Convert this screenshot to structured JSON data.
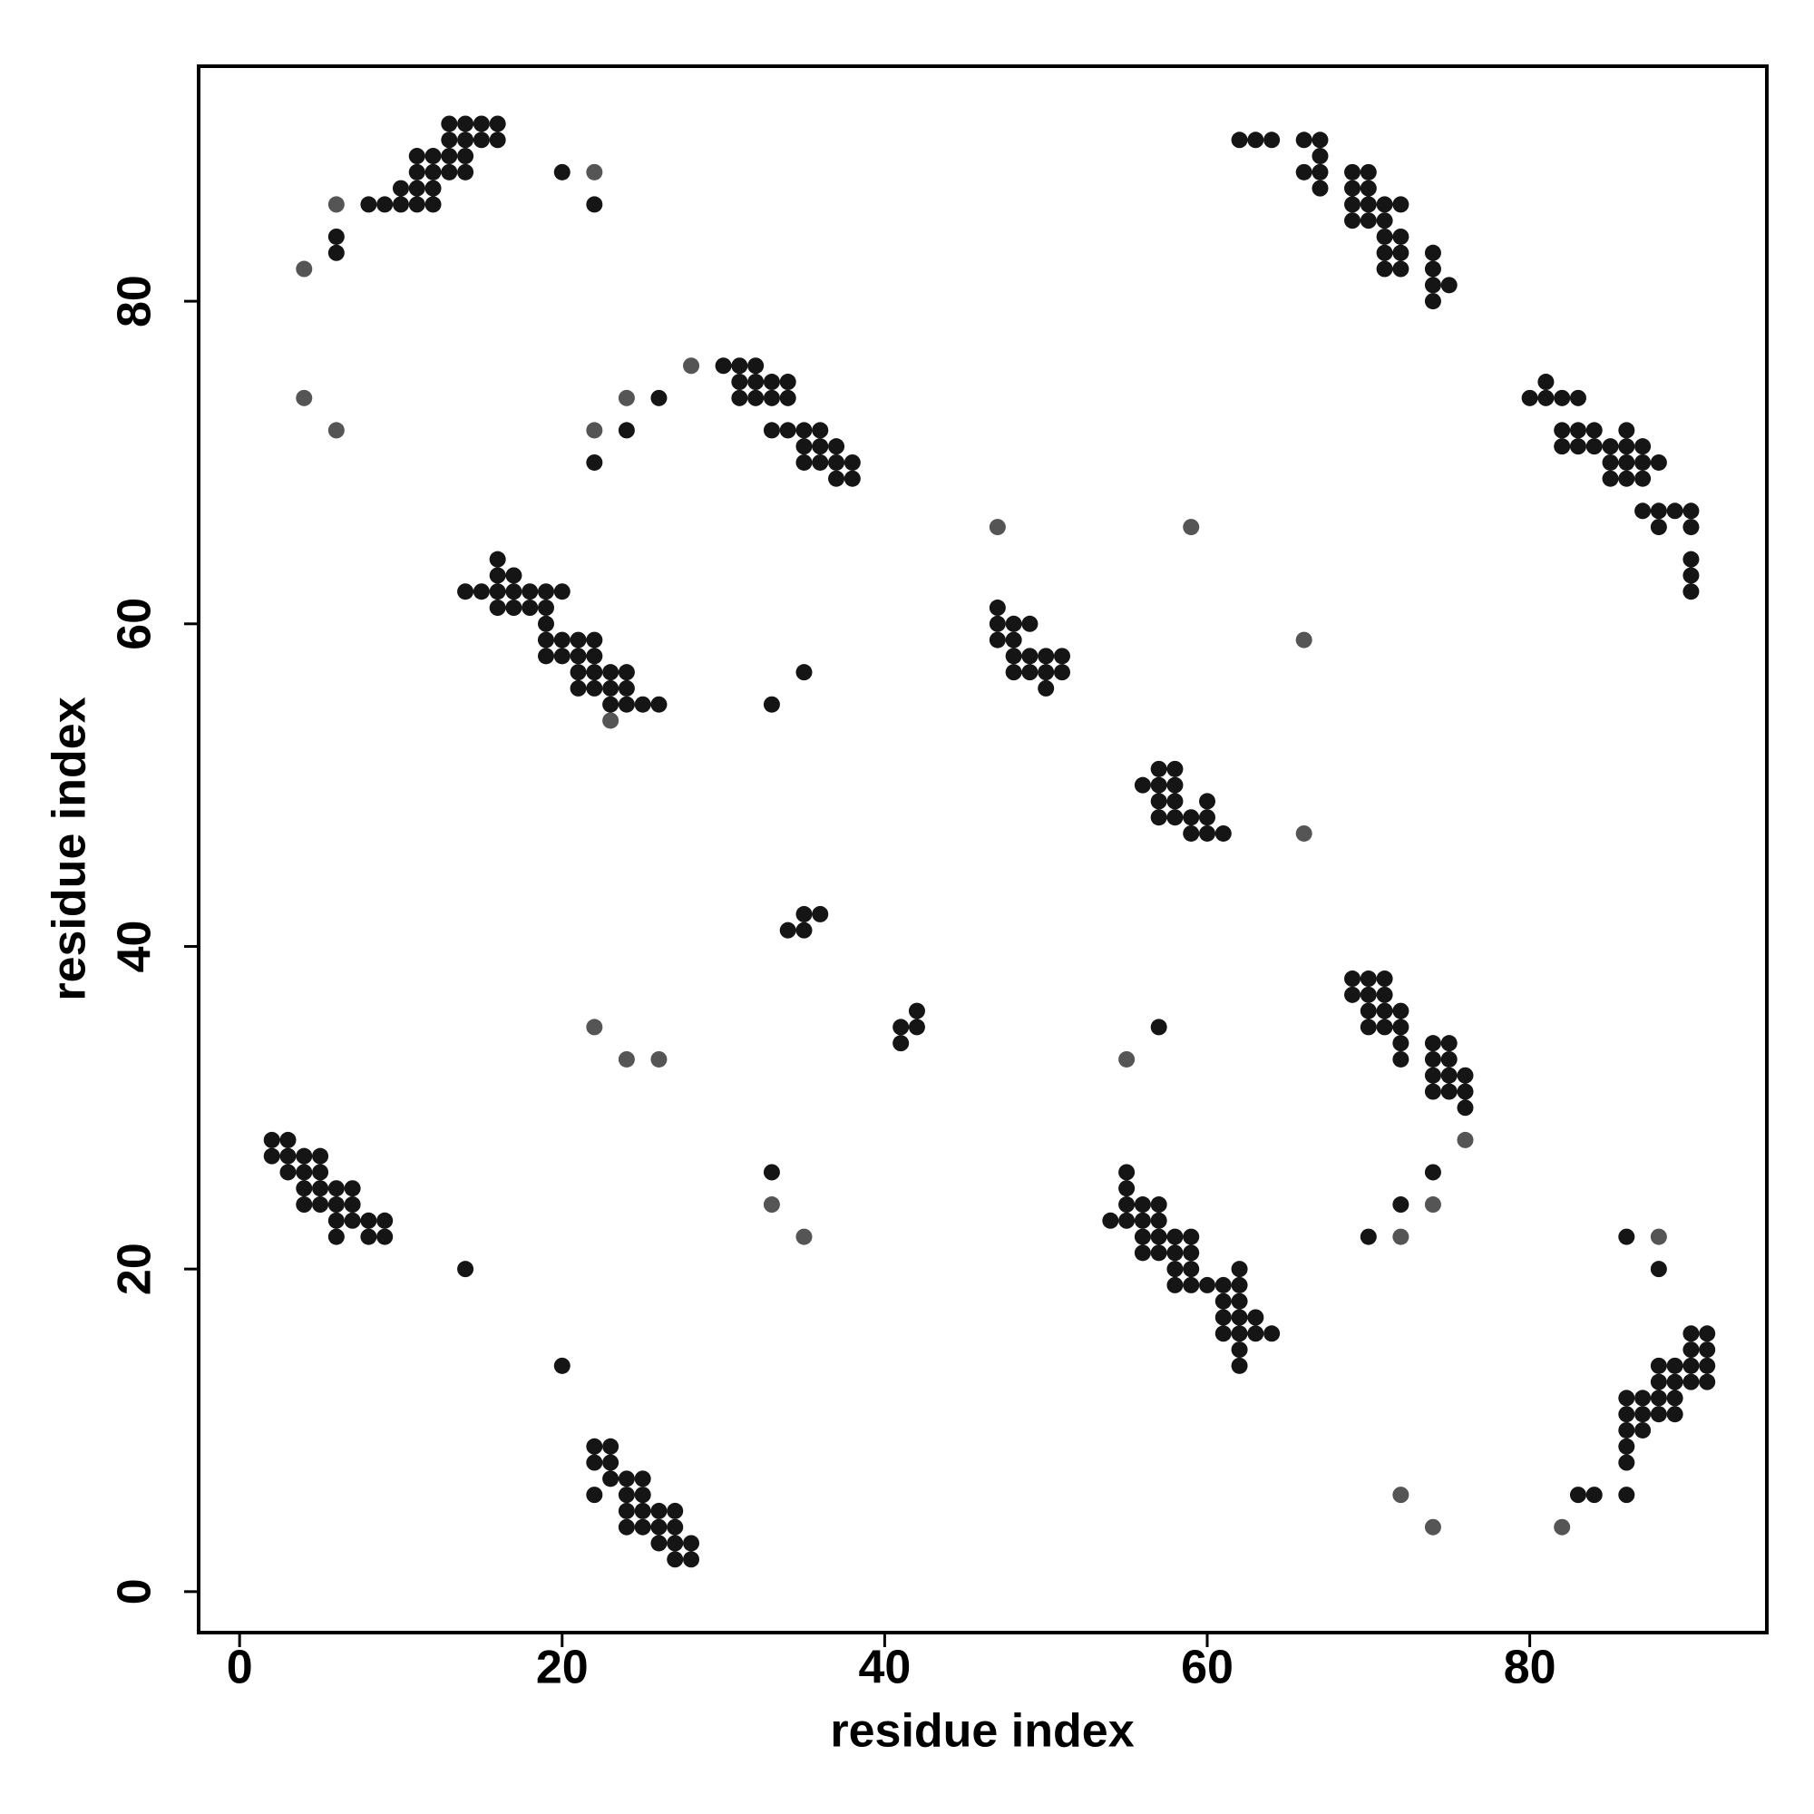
{
  "chart_data": {
    "type": "scatter",
    "xlabel": "residue index",
    "ylabel": "residue index",
    "xlim": [
      -2.54,
      94.7
    ],
    "ylim": [
      -2.54,
      94.57
    ],
    "xticks": [
      0,
      20,
      40,
      60,
      80
    ],
    "yticks": [
      0,
      20,
      40,
      60,
      80
    ],
    "series": [
      {
        "color": "#151515",
        "x": [
          13,
          14,
          15,
          16,
          13,
          14,
          15,
          16,
          62,
          63,
          64,
          66,
          67,
          11,
          12,
          13,
          14,
          67,
          11,
          12,
          13,
          14,
          20,
          66,
          67,
          69,
          70,
          10,
          11,
          12,
          67,
          69,
          70,
          8,
          9,
          10,
          11,
          12,
          22,
          69,
          70,
          71,
          72,
          69,
          70,
          71,
          6,
          71,
          72,
          6,
          71,
          72,
          74,
          71,
          72,
          74,
          74,
          75,
          74,
          30,
          31,
          32,
          31,
          32,
          33,
          34,
          81,
          26,
          31,
          32,
          33,
          34,
          80,
          81,
          82,
          83,
          24,
          33,
          34,
          35,
          36,
          82,
          83,
          84,
          86,
          35,
          36,
          37,
          82,
          83,
          84,
          85,
          86,
          87,
          22,
          35,
          36,
          37,
          38,
          85,
          86,
          87,
          88,
          37,
          38,
          85,
          86,
          87,
          87,
          88,
          89,
          90,
          88,
          90,
          16,
          90,
          16,
          17,
          90,
          14,
          15,
          16,
          17,
          18,
          19,
          20,
          90,
          16,
          17,
          18,
          19,
          47,
          19,
          47,
          48,
          49,
          19,
          20,
          21,
          22,
          47,
          48,
          19,
          20,
          21,
          22,
          48,
          49,
          50,
          51,
          21,
          22,
          23,
          24,
          35,
          48,
          49,
          50,
          51,
          21,
          22,
          23,
          24,
          50,
          23,
          24,
          25,
          26,
          33,
          57,
          58,
          56,
          57,
          58,
          57,
          58,
          60,
          57,
          58,
          59,
          60,
          59,
          60,
          61,
          35,
          36,
          34,
          35,
          69,
          70,
          71,
          69,
          70,
          71,
          42,
          70,
          71,
          72,
          41,
          42,
          57,
          70,
          71,
          72,
          41,
          72,
          74,
          75,
          72,
          74,
          75,
          74,
          75,
          76,
          74,
          75,
          76,
          76,
          2,
          3,
          2,
          3,
          4,
          5,
          3,
          4,
          5,
          33,
          55,
          74,
          4,
          5,
          6,
          7,
          55,
          4,
          5,
          6,
          7,
          55,
          56,
          57,
          72,
          6,
          7,
          8,
          9,
          54,
          55,
          56,
          57,
          6,
          8,
          9,
          56,
          57,
          58,
          59,
          70,
          86,
          56,
          57,
          58,
          59,
          14,
          58,
          59,
          62,
          88,
          58,
          59,
          60,
          61,
          62,
          61,
          62,
          61,
          62,
          63,
          61,
          62,
          63,
          64,
          90,
          91,
          62,
          90,
          91,
          20,
          62,
          88,
          89,
          90,
          91,
          88,
          89,
          90,
          91,
          86,
          87,
          88,
          89,
          86,
          87,
          88,
          89,
          86,
          87,
          22,
          23,
          86,
          22,
          23,
          86,
          23,
          24,
          25,
          22,
          24,
          25,
          83,
          84,
          86,
          24,
          25,
          26,
          27,
          24,
          25,
          26,
          27,
          26,
          27,
          28,
          27,
          28
        ],
        "y": [
          91,
          91,
          91,
          91,
          90,
          90,
          90,
          90,
          90,
          90,
          90,
          90,
          90,
          89,
          89,
          89,
          89,
          89,
          88,
          88,
          88,
          88,
          88,
          88,
          88,
          88,
          88,
          87,
          87,
          87,
          87,
          87,
          87,
          86,
          86,
          86,
          86,
          86,
          86,
          86,
          86,
          86,
          86,
          85,
          85,
          85,
          84,
          84,
          84,
          83,
          83,
          83,
          83,
          82,
          82,
          82,
          81,
          81,
          80,
          76,
          76,
          76,
          75,
          75,
          75,
          75,
          75,
          74,
          74,
          74,
          74,
          74,
          74,
          74,
          74,
          74,
          72,
          72,
          72,
          72,
          72,
          72,
          72,
          72,
          72,
          71,
          71,
          71,
          71,
          71,
          71,
          71,
          71,
          71,
          70,
          70,
          70,
          70,
          70,
          70,
          70,
          70,
          70,
          69,
          69,
          69,
          69,
          69,
          67,
          67,
          67,
          67,
          66,
          66,
          64,
          64,
          63,
          63,
          63,
          62,
          62,
          62,
          62,
          62,
          62,
          62,
          62,
          61,
          61,
          61,
          61,
          61,
          60,
          60,
          60,
          60,
          59,
          59,
          59,
          59,
          59,
          59,
          58,
          58,
          58,
          58,
          58,
          58,
          58,
          58,
          57,
          57,
          57,
          57,
          57,
          57,
          57,
          57,
          57,
          56,
          56,
          56,
          56,
          56,
          55,
          55,
          55,
          55,
          55,
          51,
          51,
          50,
          50,
          50,
          49,
          49,
          49,
          48,
          48,
          48,
          48,
          47,
          47,
          47,
          42,
          42,
          41,
          41,
          38,
          38,
          38,
          37,
          37,
          37,
          36,
          36,
          36,
          36,
          35,
          35,
          35,
          35,
          35,
          35,
          34,
          34,
          34,
          34,
          33,
          33,
          33,
          32,
          32,
          32,
          31,
          31,
          31,
          30,
          28,
          28,
          27,
          27,
          27,
          27,
          26,
          26,
          26,
          26,
          26,
          26,
          25,
          25,
          25,
          25,
          25,
          24,
          24,
          24,
          24,
          24,
          24,
          24,
          24,
          23,
          23,
          23,
          23,
          23,
          23,
          23,
          23,
          22,
          22,
          22,
          22,
          22,
          22,
          22,
          22,
          22,
          21,
          21,
          21,
          21,
          20,
          20,
          20,
          20,
          20,
          19,
          19,
          19,
          19,
          19,
          18,
          18,
          17,
          17,
          17,
          16,
          16,
          16,
          16,
          16,
          16,
          15,
          15,
          15,
          14,
          14,
          14,
          14,
          14,
          14,
          13,
          13,
          13,
          13,
          12,
          12,
          12,
          12,
          11,
          11,
          11,
          11,
          10,
          10,
          9,
          9,
          9,
          8,
          8,
          8,
          7,
          7,
          7,
          6,
          6,
          6,
          6,
          6,
          6,
          5,
          5,
          5,
          5,
          4,
          4,
          4,
          4,
          3,
          3,
          3,
          2,
          2
        ]
      },
      {
        "color": "#555555",
        "x": [
          4,
          4,
          6,
          22,
          22,
          24,
          28,
          47,
          59,
          66,
          66,
          22,
          24,
          26,
          55,
          76,
          74,
          72,
          88,
          35,
          33,
          72,
          74,
          82,
          23,
          6
        ],
        "y": [
          82,
          74,
          72,
          88,
          72,
          74,
          76,
          66,
          66,
          59,
          47,
          35,
          33,
          33,
          33,
          28,
          24,
          22,
          22,
          22,
          24,
          6,
          4,
          4,
          54,
          86
        ]
      }
    ]
  }
}
